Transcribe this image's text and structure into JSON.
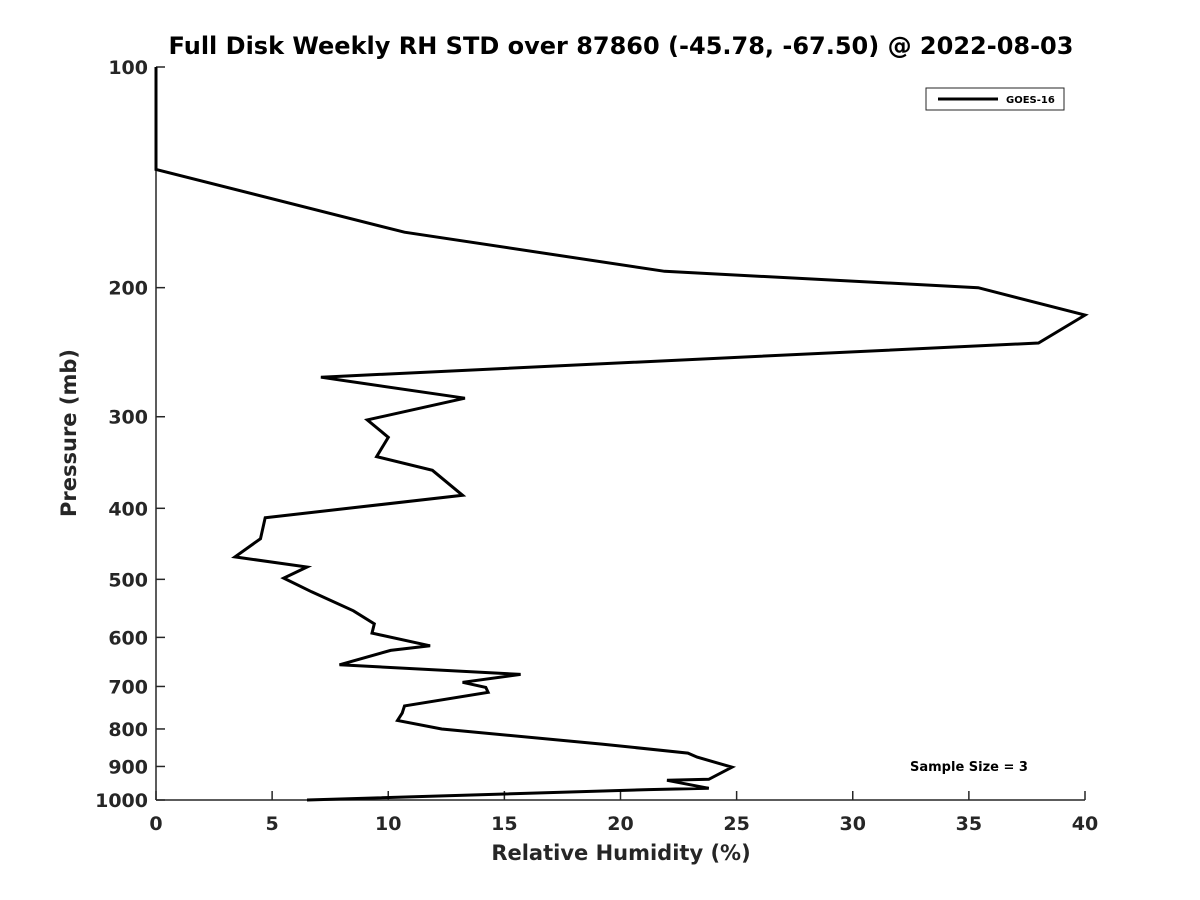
{
  "chart_data": {
    "type": "line",
    "title": "Full Disk Weekly RH STD over 87860 (-45.78, -67.50) @ 2022-08-03",
    "xlabel": "Relative Humidity (%)",
    "ylabel": "Pressure (mb)",
    "xlim": [
      0,
      40
    ],
    "ylim": [
      100,
      1000
    ],
    "yscale": "log",
    "y_reversed": true,
    "grid": false,
    "legend_position": "top-right",
    "xticks": [
      0,
      5,
      10,
      15,
      20,
      25,
      30,
      35,
      40
    ],
    "yticks": [
      100,
      200,
      300,
      400,
      500,
      600,
      700,
      800,
      900,
      1000
    ],
    "series": [
      {
        "name": "GOES-16",
        "color": "#000000",
        "x": [
          0,
          0,
          10.7,
          21.9,
          35.4,
          40.0,
          38.0,
          7.1,
          13.3,
          9.1,
          10.0,
          9.5,
          11.9,
          13.2,
          4.7,
          4.5,
          3.4,
          6.5,
          5.5,
          6.7,
          8.5,
          9.4,
          9.3,
          11.8,
          10.1,
          7.9,
          15.7,
          13.2,
          14.2,
          14.3,
          10.7,
          10.6,
          10.4,
          12.3,
          19.2,
          22.9,
          23.3,
          24.8,
          23.8,
          22.0,
          23.8,
          21.2,
          6.5
        ],
        "y": [
          100,
          138,
          168,
          190,
          200,
          218,
          238,
          265,
          283,
          303,
          320,
          340,
          355,
          384,
          412,
          440,
          466,
          481,
          498,
          520,
          552,
          575,
          592,
          616,
          625,
          654,
          674,
          691,
          702,
          713,
          744,
          761,
          779,
          800,
          839,
          863,
          874,
          902,
          937,
          940,
          964,
          968,
          1000
        ]
      }
    ],
    "annotations": [
      "Sample Size = 3"
    ]
  }
}
